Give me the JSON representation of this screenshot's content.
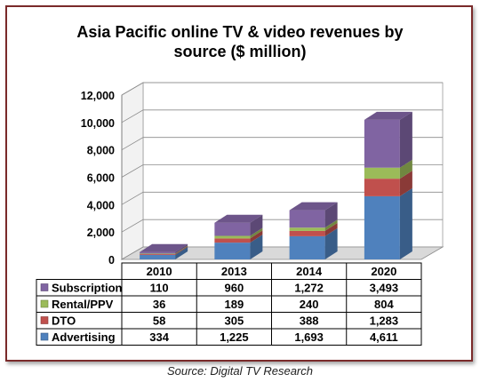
{
  "source_note": "Source: Digital TV Research",
  "colors": {
    "frame": "#7a2a2a",
    "subscription": "#8064a2",
    "rental": "#9bbb59",
    "dto": "#c0504d",
    "advertising": "#4f81bd"
  },
  "chart_data": {
    "type": "bar",
    "stacked": true,
    "three_d": true,
    "title": "Asia Pacific online TV & video revenues by source ($ million)",
    "title_lines": [
      "Asia Pacific online TV & video revenues by",
      "source ($ million)"
    ],
    "categories": [
      "2010",
      "2013",
      "2014",
      "2020"
    ],
    "yticks": [
      "12,000",
      "10,000",
      "8,000",
      "6,000",
      "4,000",
      "2,000",
      "0"
    ],
    "ylim": [
      0,
      12000
    ],
    "grid": true,
    "data_table": true,
    "series": [
      {
        "name": "Advertising",
        "color": "#4f81bd",
        "values": [
          334,
          1225,
          1693,
          4611
        ],
        "labels": [
          "334",
          "1,225",
          "1,693",
          "4,611"
        ]
      },
      {
        "name": "DTO",
        "color": "#c0504d",
        "values": [
          58,
          305,
          388,
          1283
        ],
        "labels": [
          "58",
          "305",
          "388",
          "1,283"
        ]
      },
      {
        "name": "Rental/PPV",
        "color": "#9bbb59",
        "values": [
          36,
          189,
          240,
          804
        ],
        "labels": [
          "36",
          "189",
          "240",
          "804"
        ]
      },
      {
        "name": "Subscription",
        "color": "#8064a2",
        "values": [
          110,
          960,
          1272,
          3493
        ],
        "labels": [
          "110",
          "960",
          "1,272",
          "3,493"
        ]
      }
    ]
  }
}
